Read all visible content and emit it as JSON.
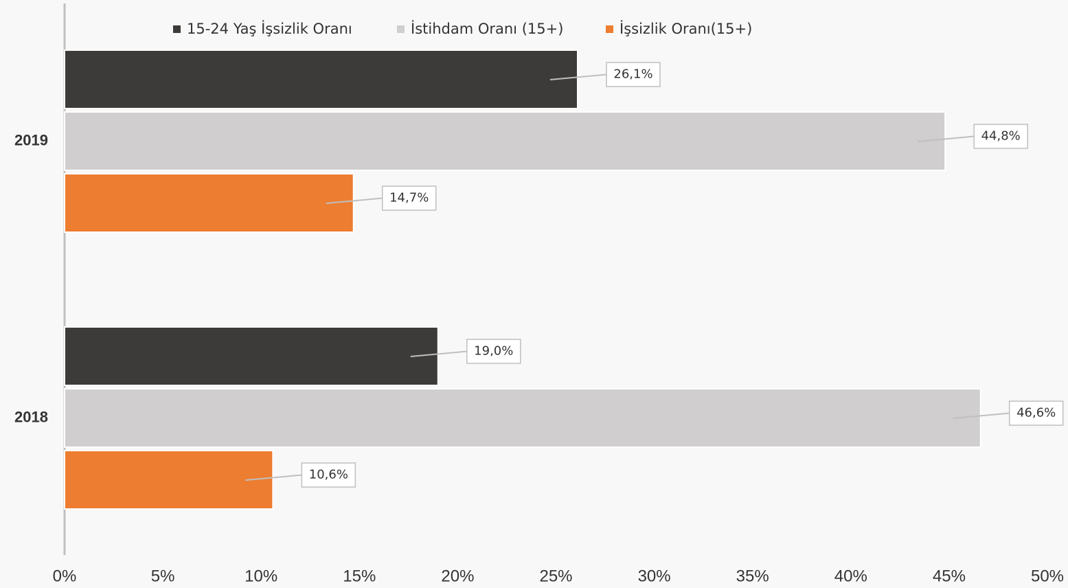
{
  "chart_data": {
    "type": "hbar",
    "categories": [
      "2019",
      "2018"
    ],
    "series": [
      {
        "name": "15-24 Yaş İşsizlik Oranı",
        "color": "#3d3b39",
        "values": [
          26.1,
          19.0
        ],
        "value_labels": [
          "26,1%",
          "19,0%"
        ]
      },
      {
        "name": "İstihdam Oranı (15+)",
        "color": "#d0cece",
        "values": [
          44.8,
          46.6
        ],
        "value_labels": [
          "44,8%",
          "46,6%"
        ]
      },
      {
        "name": "İşsizlik Oranı(15+)",
        "color": "#ed7d31",
        "values": [
          14.7,
          10.6
        ],
        "value_labels": [
          "14,7%",
          "10,6%"
        ]
      }
    ],
    "xlim": [
      0,
      50
    ],
    "xticks": [
      {
        "value": 0,
        "label": "0%"
      },
      {
        "value": 5,
        "label": "5%"
      },
      {
        "value": 10,
        "label": "10%"
      },
      {
        "value": 15,
        "label": "15%"
      },
      {
        "value": 20,
        "label": "20%"
      },
      {
        "value": 25,
        "label": "25%"
      },
      {
        "value": 30,
        "label": "30%"
      },
      {
        "value": 35,
        "label": "35%"
      },
      {
        "value": 40,
        "label": "40%"
      },
      {
        "value": 45,
        "label": "45%"
      },
      {
        "value": 50,
        "label": "50%"
      }
    ],
    "legend": "top"
  }
}
